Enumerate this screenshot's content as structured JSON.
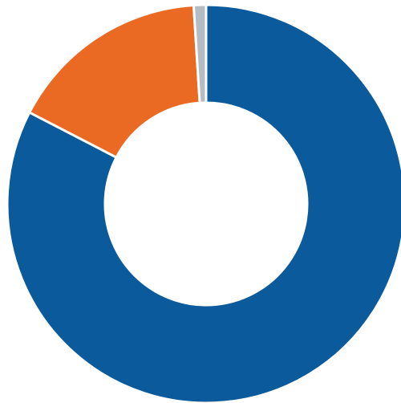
{
  "chart_data": {
    "type": "pie",
    "style": "donut",
    "title": "",
    "legend": "none",
    "data_labels": "none",
    "start": "12 o'clock",
    "direction": "clockwise",
    "slices": [
      {
        "value": 82.6,
        "color": "#0b5a9c"
      },
      {
        "value": 16.4,
        "color": "#ea6a24"
      },
      {
        "value": 1.0,
        "color": "#b4bcc4"
      }
    ],
    "hole_color": "#ffffff",
    "separator_color": "#ffffff"
  }
}
